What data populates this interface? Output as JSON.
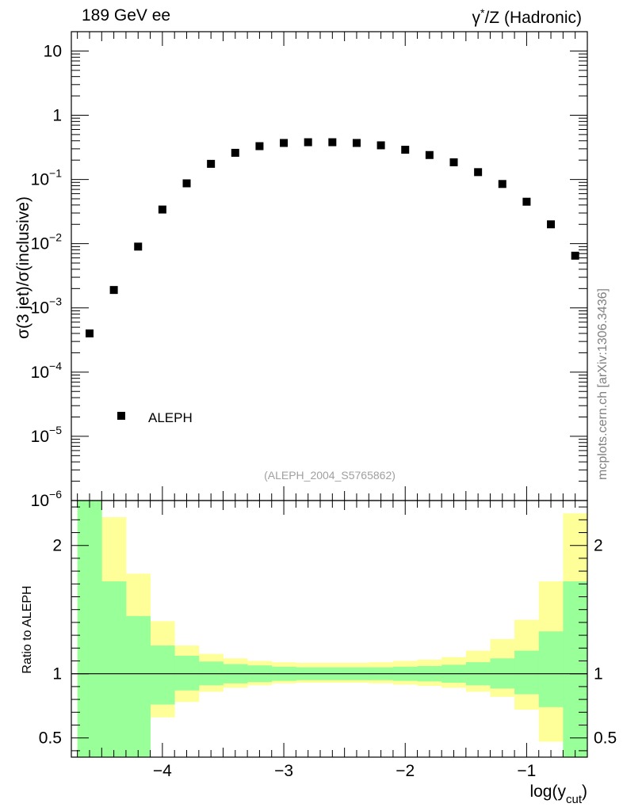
{
  "header": {
    "left": "189 GeV ee",
    "right_sup": "*",
    "right_rest": "/Z (Hadronic)"
  },
  "source_label": "mcplots.cern.ch [arXiv:1306.3436]",
  "analysis_tag": "(ALEPH_2004_S5765862)",
  "chart_data": [
    {
      "type": "scatter",
      "title": "",
      "ylabel": "σ(3 jet)/σ(inclusive)",
      "xlabel": "",
      "yscale": "log",
      "ylim": [
        1e-06,
        20
      ],
      "xlim": [
        -4.75,
        -0.5
      ],
      "legend": {
        "label": "ALEPH",
        "position": "bottom-left"
      },
      "series": [
        {
          "name": "ALEPH",
          "x": [
            -4.6,
            -4.4,
            -4.2,
            -4.0,
            -3.8,
            -3.6,
            -3.4,
            -3.2,
            -3.0,
            -2.8,
            -2.6,
            -2.4,
            -2.2,
            -2.0,
            -1.8,
            -1.6,
            -1.4,
            -1.2,
            -1.0,
            -0.8,
            -0.6
          ],
          "y": [
            0.0004,
            0.0019,
            0.009,
            0.034,
            0.087,
            0.175,
            0.26,
            0.33,
            0.37,
            0.38,
            0.38,
            0.37,
            0.34,
            0.29,
            0.24,
            0.185,
            0.13,
            0.085,
            0.045,
            0.02,
            0.0065
          ]
        }
      ],
      "y_ticks": [
        {
          "base": "10",
          "exp": "−6"
        },
        {
          "base": "10",
          "exp": "−5"
        },
        {
          "base": "10",
          "exp": "−4"
        },
        {
          "base": "10",
          "exp": "−3"
        },
        {
          "base": "10",
          "exp": "−2"
        },
        {
          "base": "10",
          "exp": "−1"
        },
        {
          "base": "1",
          "exp": ""
        },
        {
          "base": "10",
          "exp": ""
        }
      ]
    },
    {
      "type": "area",
      "title": "",
      "ylabel": "Ratio to ALEPH",
      "xlabel": "log(y",
      "xlabel_sub": "cut",
      "xlabel_close": ")",
      "ylim": [
        0.35,
        2.35
      ],
      "xlim": [
        -4.75,
        -0.5
      ],
      "reference_line": 1.0,
      "x_edges": [
        -4.7,
        -4.5,
        -4.3,
        -4.1,
        -3.9,
        -3.7,
        -3.5,
        -3.3,
        -3.1,
        -2.9,
        -2.7,
        -2.5,
        -2.3,
        -2.1,
        -1.9,
        -1.7,
        -1.5,
        -1.3,
        -1.1,
        -0.9,
        -0.7,
        -0.5
      ],
      "bands": [
        {
          "name": "inner uncertainty",
          "color": "#99ff99",
          "low": [
            0.35,
            0.35,
            0.35,
            0.76,
            0.87,
            0.91,
            0.925,
            0.935,
            0.945,
            0.95,
            0.95,
            0.95,
            0.95,
            0.945,
            0.94,
            0.93,
            0.91,
            0.885,
            0.84,
            0.74,
            0.35
          ],
          "high": [
            2.35,
            1.72,
            1.45,
            1.22,
            1.14,
            1.095,
            1.075,
            1.065,
            1.055,
            1.05,
            1.05,
            1.05,
            1.05,
            1.055,
            1.06,
            1.07,
            1.09,
            1.12,
            1.18,
            1.33,
            1.72
          ]
        },
        {
          "name": "outer uncertainty",
          "color": "#ffff99",
          "low": [
            0.35,
            0.35,
            0.67,
            0.66,
            0.78,
            0.86,
            0.89,
            0.91,
            0.925,
            0.93,
            0.93,
            0.93,
            0.925,
            0.915,
            0.905,
            0.89,
            0.86,
            0.82,
            0.72,
            0.47,
            0.35
          ],
          "high": [
            2.35,
            2.22,
            1.78,
            1.41,
            1.22,
            1.155,
            1.12,
            1.1,
            1.09,
            1.085,
            1.085,
            1.085,
            1.09,
            1.1,
            1.11,
            1.13,
            1.18,
            1.27,
            1.42,
            1.72,
            2.25
          ]
        }
      ],
      "y_ticks": [
        0.5,
        1,
        2
      ],
      "x_ticks": [
        -4,
        -3,
        -2,
        -1
      ],
      "x_tick_labels": [
        "−4",
        "−3",
        "−2",
        "−1"
      ]
    }
  ]
}
